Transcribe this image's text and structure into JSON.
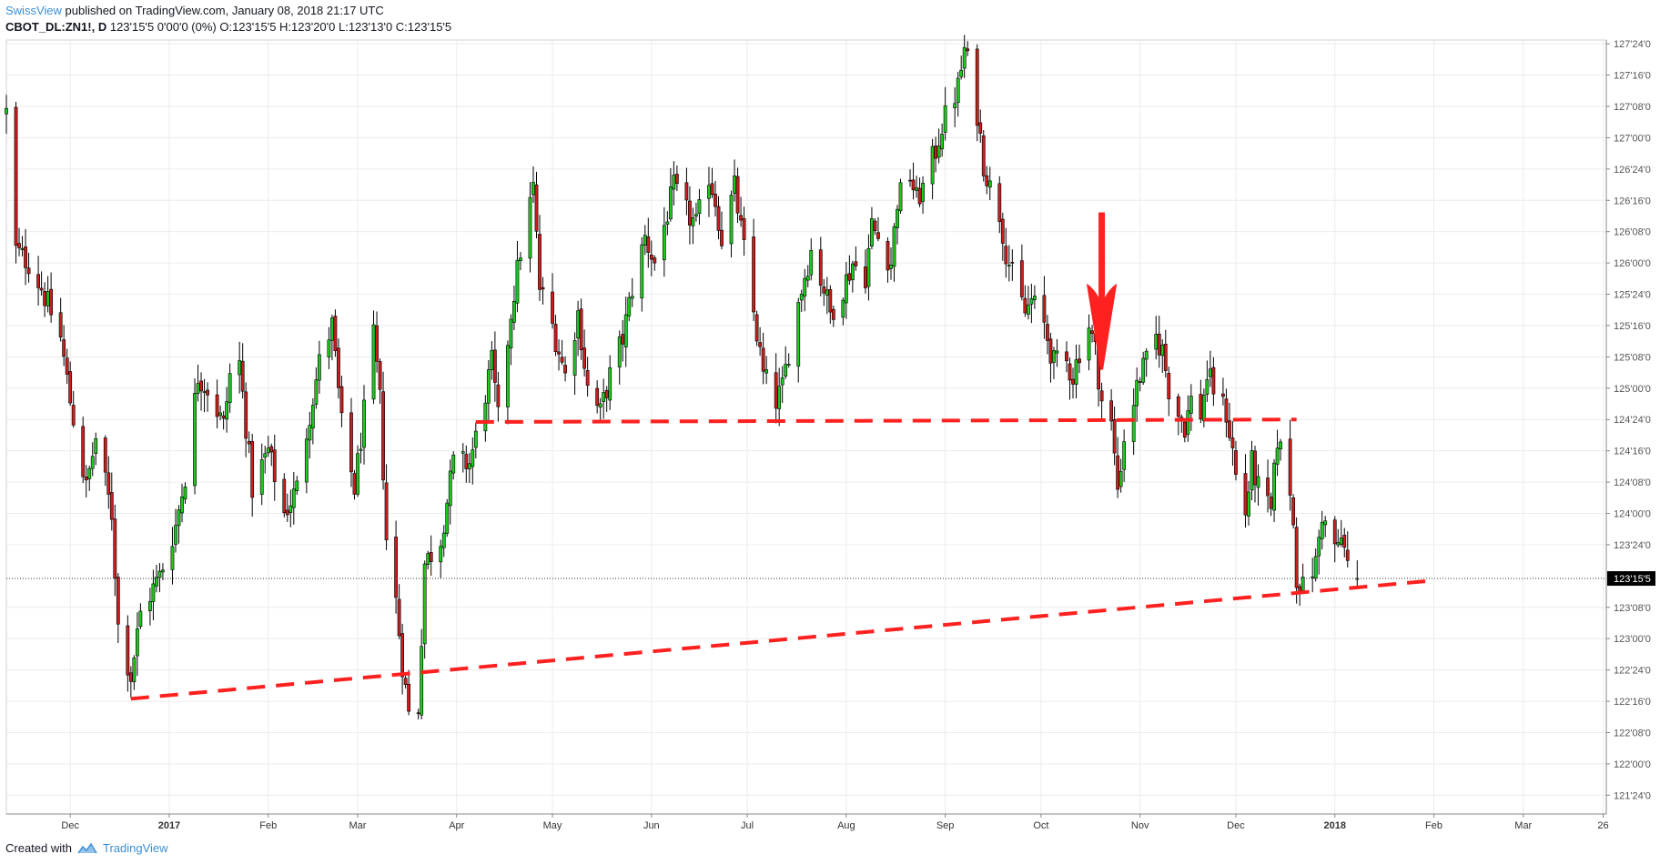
{
  "header": {
    "author": "SwissView",
    "published_text": " published on TradingView.com, January 08, 2018 21:17 UTC"
  },
  "symbol": {
    "name": "CBOT_DL:ZN1!, D",
    "values": "123'15'5 0'00'0 (0%) O:123'15'5 H:123'20'0 L:123'13'0 C:123'15'5"
  },
  "footer": {
    "created_with": "Created with",
    "brand": "TradingView"
  },
  "colors": {
    "up": "#1ec81e",
    "down": "#c81e1e",
    "wick": "#000000",
    "annotation": "#ff2020",
    "grid": "#ececec"
  },
  "chart_data": {
    "type": "candlestick",
    "price_axis_unit": "32nds",
    "y_ticks": [
      {
        "label": "127'24'0",
        "value": 127.75
      },
      {
        "label": "127'16'0",
        "value": 127.5
      },
      {
        "label": "127'08'0",
        "value": 127.25
      },
      {
        "label": "127'00'0",
        "value": 127.0
      },
      {
        "label": "126'24'0",
        "value": 126.75
      },
      {
        "label": "126'16'0",
        "value": 126.5
      },
      {
        "label": "126'08'0",
        "value": 126.25
      },
      {
        "label": "126'00'0",
        "value": 126.0
      },
      {
        "label": "125'24'0",
        "value": 125.75
      },
      {
        "label": "125'16'0",
        "value": 125.5
      },
      {
        "label": "125'08'0",
        "value": 125.25
      },
      {
        "label": "125'00'0",
        "value": 125.0
      },
      {
        "label": "124'24'0",
        "value": 124.75
      },
      {
        "label": "124'16'0",
        "value": 124.5
      },
      {
        "label": "124'08'0",
        "value": 124.25
      },
      {
        "label": "124'00'0",
        "value": 124.0
      },
      {
        "label": "123'24'0",
        "value": 123.75
      },
      {
        "label": "123'08'0",
        "value": 123.25
      },
      {
        "label": "123'00'0",
        "value": 123.0
      },
      {
        "label": "122'24'0",
        "value": 122.75
      },
      {
        "label": "122'16'0",
        "value": 122.5
      },
      {
        "label": "122'08'0",
        "value": 122.25
      },
      {
        "label": "122'00'0",
        "value": 122.0
      },
      {
        "label": "121'24'0",
        "value": 121.75
      }
    ],
    "ylim": [
      121.6,
      127.78
    ],
    "last_price": {
      "label": "123'15'5",
      "value": 123.4805
    },
    "x_ticks": [
      {
        "label": "Dec",
        "date": "2016-12-01"
      },
      {
        "label": "2017",
        "date": "2017-01-01",
        "bold": true
      },
      {
        "label": "Feb",
        "date": "2017-02-01"
      },
      {
        "label": "Mar",
        "date": "2017-03-01"
      },
      {
        "label": "Apr",
        "date": "2017-04-01"
      },
      {
        "label": "May",
        "date": "2017-05-01"
      },
      {
        "label": "Jun",
        "date": "2017-06-01"
      },
      {
        "label": "Jul",
        "date": "2017-07-01"
      },
      {
        "label": "Aug",
        "date": "2017-08-01"
      },
      {
        "label": "Sep",
        "date": "2017-09-01"
      },
      {
        "label": "Oct",
        "date": "2017-10-01"
      },
      {
        "label": "Nov",
        "date": "2017-11-01"
      },
      {
        "label": "Dec",
        "date": "2017-12-01"
      },
      {
        "label": "2018",
        "date": "2018-01-01",
        "bold": true
      },
      {
        "label": "Feb",
        "date": "2018-02-01"
      },
      {
        "label": "Mar",
        "date": "2018-03-01"
      },
      {
        "label": "26",
        "date": "2018-03-26"
      }
    ],
    "xlim": [
      "2016-11-11",
      "2018-03-27"
    ],
    "close_path": [
      [
        "2016-11-11",
        127.2
      ],
      [
        "2016-11-14",
        126.1
      ],
      [
        "2016-11-18",
        126.0
      ],
      [
        "2016-11-22",
        125.8
      ],
      [
        "2016-11-28",
        125.4
      ],
      [
        "2016-12-01",
        124.9
      ],
      [
        "2016-12-06",
        124.2
      ],
      [
        "2016-12-09",
        124.6
      ],
      [
        "2016-12-14",
        124.0
      ],
      [
        "2016-12-16",
        123.1
      ],
      [
        "2016-12-20",
        122.7
      ],
      [
        "2016-12-23",
        123.2
      ],
      [
        "2016-12-29",
        123.5
      ],
      [
        "2017-01-03",
        123.9
      ],
      [
        "2017-01-06",
        124.3
      ],
      [
        "2017-01-10",
        125.1
      ],
      [
        "2017-01-13",
        125.0
      ],
      [
        "2017-01-18",
        124.7
      ],
      [
        "2017-01-20",
        125.1
      ],
      [
        "2017-01-23",
        125.2
      ],
      [
        "2017-01-27",
        124.2
      ],
      [
        "2017-02-01",
        124.5
      ],
      [
        "2017-02-06",
        124.0
      ],
      [
        "2017-02-10",
        124.2
      ],
      [
        "2017-02-14",
        124.8
      ],
      [
        "2017-02-17",
        125.2
      ],
      [
        "2017-02-21",
        125.5
      ],
      [
        "2017-02-24",
        124.7
      ],
      [
        "2017-02-28",
        124.2
      ],
      [
        "2017-03-03",
        124.8
      ],
      [
        "2017-03-06",
        125.4
      ],
      [
        "2017-03-08",
        124.9
      ],
      [
        "2017-03-10",
        123.8
      ],
      [
        "2017-03-13",
        123.3
      ],
      [
        "2017-03-15",
        122.8
      ],
      [
        "2017-03-17",
        122.4
      ],
      [
        "2017-03-20",
        122.45
      ],
      [
        "2017-03-22",
        123.6
      ],
      [
        "2017-03-27",
        123.8
      ],
      [
        "2017-03-31",
        124.4
      ],
      [
        "2017-04-05",
        124.4
      ],
      [
        "2017-04-07",
        124.6
      ],
      [
        "2017-04-12",
        125.2
      ],
      [
        "2017-04-14",
        124.75
      ],
      [
        "2017-04-18",
        125.6
      ],
      [
        "2017-04-21",
        126.1
      ],
      [
        "2017-04-25",
        126.6
      ],
      [
        "2017-04-27",
        125.8
      ],
      [
        "2017-05-01",
        125.5
      ],
      [
        "2017-05-05",
        125.1
      ],
      [
        "2017-05-09",
        125.6
      ],
      [
        "2017-05-12",
        125.0
      ],
      [
        "2017-05-16",
        124.8
      ],
      [
        "2017-05-19",
        125.1
      ],
      [
        "2017-05-23",
        125.4
      ],
      [
        "2017-05-26",
        125.8
      ],
      [
        "2017-05-30",
        126.2
      ],
      [
        "2017-06-02",
        126.0
      ],
      [
        "2017-06-05",
        126.3
      ],
      [
        "2017-06-08",
        126.6
      ],
      [
        "2017-06-12",
        126.4
      ],
      [
        "2017-06-15",
        126.3
      ],
      [
        "2017-06-19",
        126.7
      ],
      [
        "2017-06-21",
        126.5
      ],
      [
        "2017-06-23",
        126.2
      ],
      [
        "2017-06-27",
        126.6
      ],
      [
        "2017-06-30",
        126.1
      ],
      [
        "2017-07-03",
        125.6
      ],
      [
        "2017-07-06",
        125.1
      ],
      [
        "2017-07-10",
        124.9
      ],
      [
        "2017-07-12",
        125.0
      ],
      [
        "2017-07-14",
        125.3
      ],
      [
        "2017-07-18",
        125.8
      ],
      [
        "2017-07-21",
        126.1
      ],
      [
        "2017-07-25",
        125.8
      ],
      [
        "2017-07-27",
        125.6
      ],
      [
        "2017-07-31",
        125.8
      ],
      [
        "2017-08-03",
        126.0
      ],
      [
        "2017-08-07",
        125.9
      ],
      [
        "2017-08-09",
        126.3
      ],
      [
        "2017-08-11",
        126.2
      ],
      [
        "2017-08-15",
        126.0
      ],
      [
        "2017-08-17",
        126.5
      ],
      [
        "2017-08-21",
        126.7
      ],
      [
        "2017-08-23",
        126.5
      ],
      [
        "2017-08-25",
        126.6
      ],
      [
        "2017-08-29",
        126.9
      ],
      [
        "2017-08-31",
        127.1
      ],
      [
        "2017-09-05",
        127.4
      ],
      [
        "2017-09-07",
        127.7
      ],
      [
        "2017-09-08",
        127.6
      ],
      [
        "2017-09-11",
        127.2
      ],
      [
        "2017-09-13",
        126.8
      ],
      [
        "2017-09-15",
        126.6
      ],
      [
        "2017-09-18",
        126.4
      ],
      [
        "2017-09-20",
        126.1
      ],
      [
        "2017-09-22",
        125.9
      ],
      [
        "2017-09-26",
        125.6
      ],
      [
        "2017-09-28",
        125.7
      ],
      [
        "2017-10-02",
        125.5
      ],
      [
        "2017-10-05",
        125.2
      ],
      [
        "2017-10-09",
        125.2
      ],
      [
        "2017-10-11",
        125.1
      ],
      [
        "2017-10-13",
        125.3
      ],
      [
        "2017-10-16",
        125.5
      ],
      [
        "2017-10-18",
        125.3
      ],
      [
        "2017-10-20",
        124.9
      ],
      [
        "2017-10-23",
        124.7
      ],
      [
        "2017-10-25",
        124.2
      ],
      [
        "2017-10-27",
        124.6
      ],
      [
        "2017-10-30",
        124.9
      ],
      [
        "2017-11-01",
        125.1
      ],
      [
        "2017-11-03",
        125.2
      ],
      [
        "2017-11-06",
        125.4
      ],
      [
        "2017-11-08",
        125.3
      ],
      [
        "2017-11-10",
        125.0
      ],
      [
        "2017-11-13",
        124.8
      ],
      [
        "2017-11-15",
        124.7
      ],
      [
        "2017-11-17",
        124.9
      ],
      [
        "2017-11-20",
        124.8
      ],
      [
        "2017-11-22",
        125.1
      ],
      [
        "2017-11-24",
        125.0
      ],
      [
        "2017-11-28",
        124.8
      ],
      [
        "2017-11-30",
        124.5
      ],
      [
        "2017-12-01",
        124.3
      ],
      [
        "2017-12-04",
        124.0
      ],
      [
        "2017-12-06",
        124.4
      ],
      [
        "2017-12-08",
        124.2
      ],
      [
        "2017-12-12",
        124.0
      ],
      [
        "2017-12-14",
        124.6
      ],
      [
        "2017-12-15",
        124.5
      ],
      [
        "2017-12-18",
        124.2
      ],
      [
        "2017-12-19",
        123.9
      ],
      [
        "2017-12-20",
        123.5
      ],
      [
        "2017-12-22",
        123.4
      ],
      [
        "2017-12-26",
        123.6
      ],
      [
        "2017-12-27",
        123.8
      ],
      [
        "2017-12-28",
        124.0
      ],
      [
        "2017-12-29",
        123.9
      ],
      [
        "2018-01-02",
        123.7
      ],
      [
        "2018-01-03",
        123.8
      ],
      [
        "2018-01-05",
        123.6
      ],
      [
        "2018-01-08",
        123.48
      ]
    ],
    "annotations": [
      {
        "type": "dashed_line",
        "name": "horizontal-resistance-line",
        "from": {
          "date": "2017-04-07",
          "price": 124.73
        },
        "to": {
          "date": "2017-12-20",
          "price": 124.75
        }
      },
      {
        "type": "dashed_line",
        "name": "rising-support-trendline",
        "from": {
          "date": "2016-12-20",
          "price": 122.52
        },
        "to": {
          "date": "2018-01-30",
          "price": 123.46
        }
      },
      {
        "type": "arrow_down",
        "name": "red-down-arrow",
        "date": "2017-10-20",
        "price_top": 126.4,
        "price_tip": 125.15
      }
    ]
  }
}
